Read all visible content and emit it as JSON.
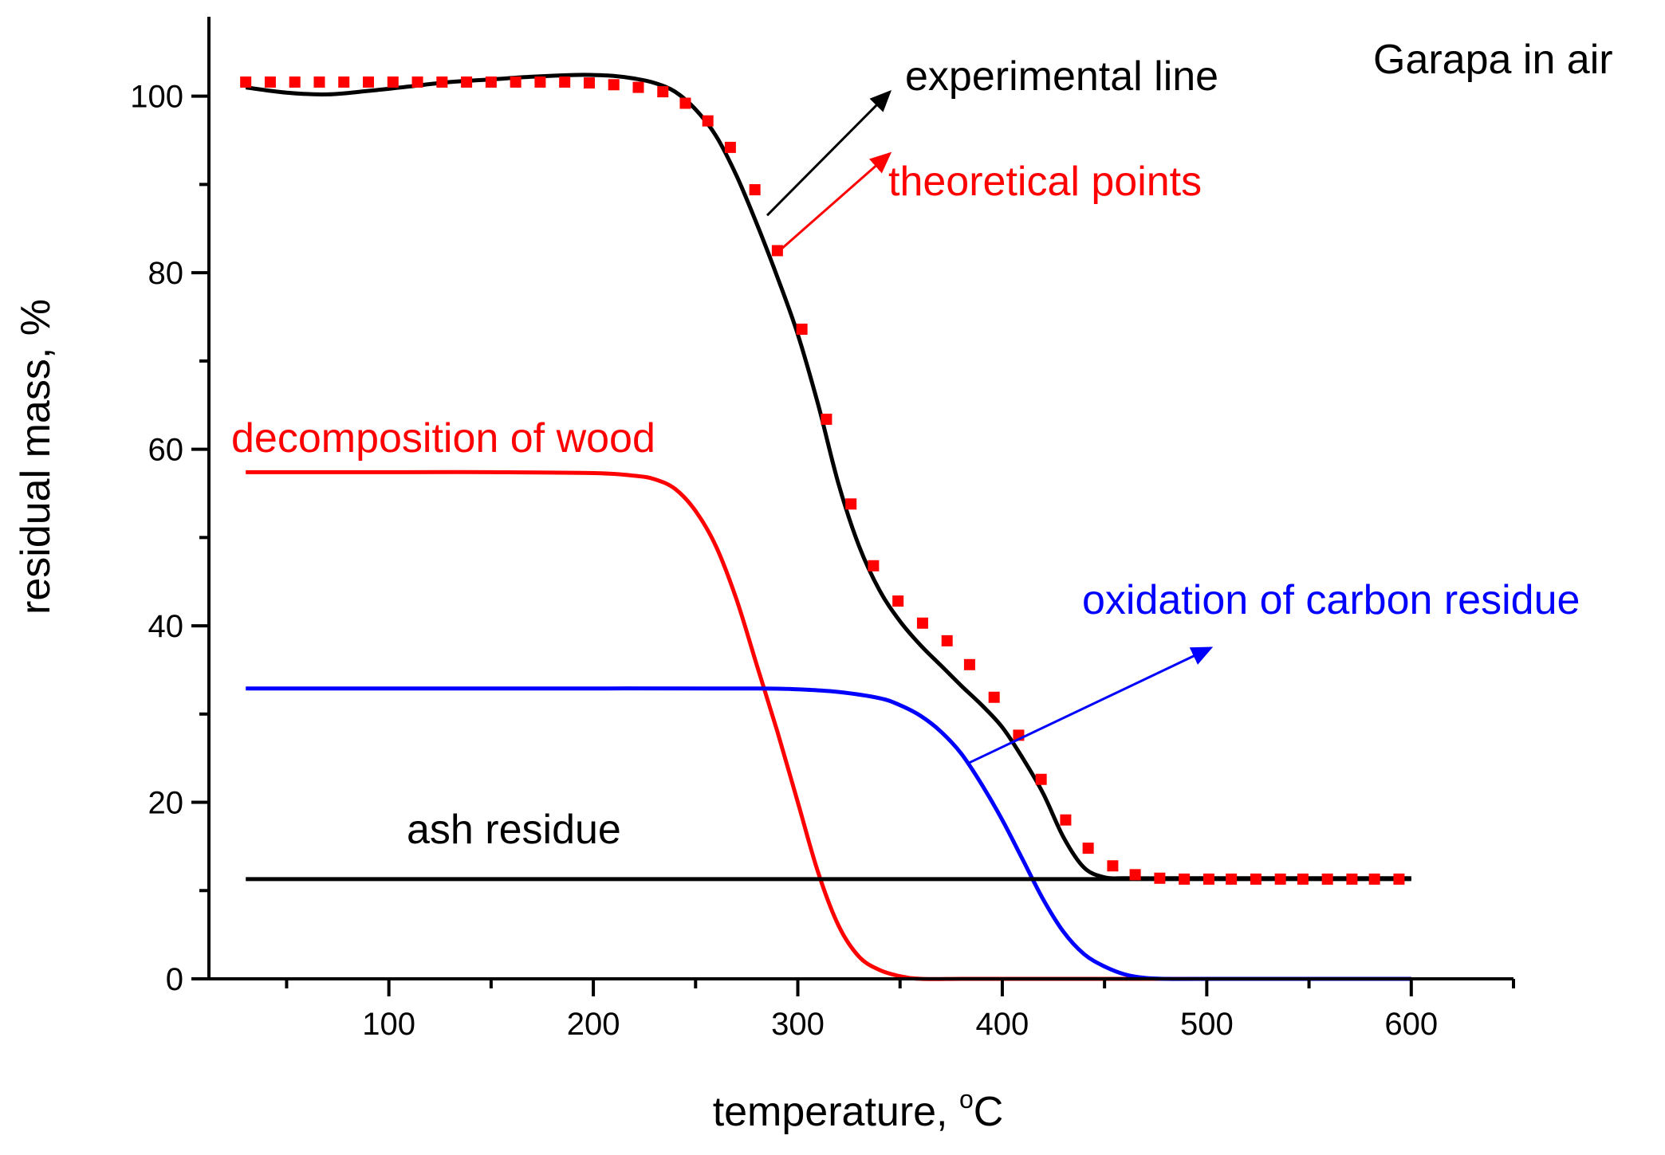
{
  "chart_data": {
    "type": "line",
    "title": "Garapa in air",
    "xlabel_main": "temperature, ",
    "xlabel_sup": "o",
    "xlabel_unit": "C",
    "ylabel": "residual mass, %",
    "xlim": [
      12,
      650
    ],
    "ylim": [
      0,
      109
    ],
    "x_ticks": [
      100,
      200,
      300,
      400,
      500,
      600
    ],
    "x_tick_labels": [
      "100",
      "200",
      "300",
      "400",
      "500",
      "600"
    ],
    "y_ticks": [
      0,
      20,
      40,
      60,
      80,
      100
    ],
    "y_tick_labels": [
      "0",
      "20",
      "40",
      "60",
      "80",
      "100"
    ],
    "colors": {
      "black": "#000000",
      "red": "#ff0000",
      "blue": "#0000ff"
    },
    "series": [
      {
        "name": "experimental line",
        "style": "line",
        "color": "#000000",
        "x": [
          30,
          50,
          70,
          90,
          110,
          130,
          150,
          170,
          190,
          200,
          210,
          220,
          230,
          240,
          250,
          260,
          270,
          280,
          290,
          300,
          310,
          320,
          330,
          340,
          350,
          360,
          370,
          380,
          390,
          400,
          410,
          420,
          430,
          440,
          450,
          460,
          480,
          500,
          520,
          540,
          560,
          580,
          600
        ],
        "y": [
          101,
          100.4,
          100.2,
          100.6,
          101.1,
          101.6,
          101.9,
          102.2,
          102.4,
          102.4,
          102.3,
          102,
          101.5,
          100.5,
          98.5,
          95.5,
          91,
          85.5,
          79.5,
          73,
          65,
          56,
          49,
          44,
          40.5,
          37.8,
          35.5,
          33.2,
          31,
          28.5,
          25,
          21,
          16,
          12.6,
          11.5,
          11.4,
          11.4,
          11.4,
          11.4,
          11.4,
          11.4,
          11.4,
          11.4
        ]
      },
      {
        "name": "theoretical points",
        "style": "markers",
        "color": "#ff0000",
        "x": [
          30,
          42,
          54,
          66,
          78,
          90,
          102,
          114,
          126,
          138,
          150,
          162,
          174,
          186,
          198,
          210,
          222,
          234,
          245,
          256,
          267,
          279,
          290,
          302,
          314,
          326,
          337,
          349,
          361,
          373,
          384,
          396,
          408,
          419,
          431,
          442,
          454,
          465,
          477,
          489,
          501,
          512,
          524,
          536,
          547,
          559,
          571,
          582,
          594
        ],
        "y": [
          101.6,
          101.6,
          101.6,
          101.6,
          101.6,
          101.6,
          101.6,
          101.6,
          101.6,
          101.6,
          101.6,
          101.6,
          101.6,
          101.6,
          101.5,
          101.3,
          101,
          100.5,
          99.2,
          97.2,
          94.2,
          89.4,
          82.5,
          73.6,
          63.4,
          53.8,
          46.8,
          42.8,
          40.3,
          38.3,
          35.6,
          31.9,
          27.6,
          22.6,
          18,
          14.8,
          12.8,
          11.8,
          11.4,
          11.3,
          11.3,
          11.3,
          11.3,
          11.3,
          11.3,
          11.3,
          11.3,
          11.3,
          11.3
        ]
      },
      {
        "name": "decomposition of wood",
        "style": "line",
        "color": "#ff0000",
        "x": [
          30,
          100,
          150,
          200,
          220,
          230,
          240,
          250,
          260,
          270,
          280,
          290,
          300,
          310,
          320,
          330,
          340,
          350,
          360,
          380,
          400,
          500,
          600
        ],
        "y": [
          57.4,
          57.4,
          57.4,
          57.3,
          57,
          56.6,
          55.5,
          53,
          49,
          43,
          35.5,
          28,
          20,
          12,
          6,
          2.5,
          1,
          0.3,
          0,
          0,
          0,
          0,
          0
        ],
        "label": "decomposition of wood"
      },
      {
        "name": "oxidation of carbon residue",
        "style": "line",
        "color": "#0000ff",
        "x": [
          30,
          100,
          200,
          280,
          300,
          320,
          340,
          350,
          360,
          370,
          380,
          390,
          400,
          410,
          420,
          430,
          440,
          450,
          460,
          470,
          480,
          500,
          600
        ],
        "y": [
          32.9,
          32.9,
          32.9,
          32.9,
          32.8,
          32.5,
          31.8,
          31,
          29.8,
          28,
          25.5,
          22,
          18,
          13.5,
          9,
          5.3,
          2.8,
          1.4,
          0.5,
          0.1,
          0,
          0,
          0
        ],
        "label": "oxidation of carbon residue"
      },
      {
        "name": "ash residue",
        "style": "line",
        "color": "#000000",
        "x": [
          30,
          600
        ],
        "y": [
          11.3,
          11.3
        ],
        "label": "ash residue"
      }
    ],
    "annotations": [
      {
        "text": "experimental line",
        "color": "#000000",
        "arrow_from": [
          285,
          86.5
        ],
        "arrow_to": [
          345,
          100.5
        ]
      },
      {
        "text": "theoretical points",
        "color": "#ff0000",
        "arrow_from": [
          291,
          82.5
        ],
        "arrow_to": [
          345,
          93.5
        ]
      },
      {
        "text": "decomposition of wood",
        "color": "#ff0000"
      },
      {
        "text": "oxidation of carbon residue",
        "color": "#0000ff",
        "arrow_from": [
          384,
          24.5
        ],
        "arrow_to": [
          502,
          37.5
        ]
      },
      {
        "text": "ash residue",
        "color": "#000000"
      }
    ]
  }
}
